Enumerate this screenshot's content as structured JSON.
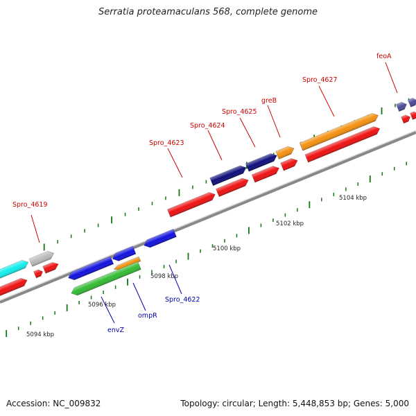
{
  "title": "Serratia proteamaculans 568, complete genome",
  "footer": {
    "accession": "Accession: NC_009832",
    "stats": "Topology: circular; Length: 5,448,853 bp; Genes: 5,000"
  },
  "colors": {
    "red": "#ee1111",
    "orange": "#f39110",
    "navy": "#0d0d7a",
    "blue": "#1111dd",
    "green": "#33bb33",
    "cyan": "#11eeee",
    "gray": "#bbbbbb",
    "purple": "#4a4a99",
    "tick": "#117711",
    "label_top": "#cc0000",
    "label_bottom": "#0000aa"
  },
  "scale_labels": [
    "5094 kbp",
    "5096 kbp",
    "5098 kbp",
    "5100 kbp",
    "5102 kbp",
    "5104 kbp"
  ],
  "gene_labels_top": [
    "Spro_4619",
    "Spro_4623",
    "Spro_4624",
    "Spro_4625",
    "greB",
    "Spro_4627",
    "feoA"
  ],
  "gene_labels_bottom": [
    "envZ",
    "ompR",
    "Spro_4622"
  ]
}
